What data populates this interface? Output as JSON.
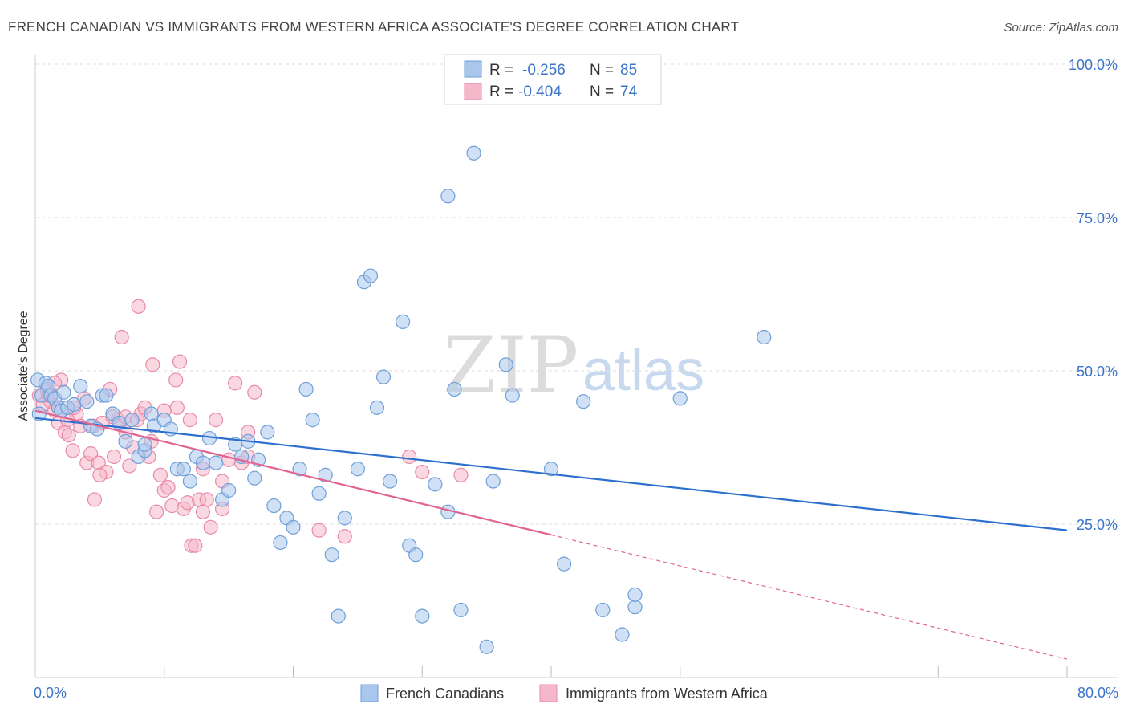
{
  "header": {
    "title": "FRENCH CANADIAN VS IMMIGRANTS FROM WESTERN AFRICA ASSOCIATE'S DEGREE CORRELATION CHART",
    "source": "Source: ZipAtlas.com"
  },
  "watermark": {
    "part1": "ZIP",
    "part2": "atlas"
  },
  "legend": {
    "rows": [
      {
        "r_label": "R =",
        "r_value": "-0.256",
        "n_label": "N =",
        "n_value": "85"
      },
      {
        "r_label": "R =",
        "r_value": "-0.404",
        "n_label": "N =",
        "n_value": "74"
      }
    ]
  },
  "bottom_legend": {
    "items": [
      {
        "label": "French Canadians"
      },
      {
        "label": "Immigrants from Western Africa"
      }
    ]
  },
  "colors": {
    "blue_fill": "#a9c6ec",
    "blue_stroke": "#6f9fd8",
    "blue_line": "#2d6fcf",
    "pink_fill": "#f5b8cb",
    "pink_stroke": "#e88aa8",
    "pink_line": "#e0648f",
    "grid": "#dddddd",
    "tick_label": "#3b73c8"
  },
  "chart_data": {
    "type": "scatter",
    "title": "FRENCH CANADIAN VS IMMIGRANTS FROM WESTERN AFRICA ASSOCIATE'S DEGREE CORRELATION CHART",
    "xlabel": "",
    "ylabel": "Associate's Degree",
    "xlim": [
      0,
      80
    ],
    "ylim": [
      0,
      100
    ],
    "x_tick_labels": [
      "0.0%",
      "80.0%"
    ],
    "y_ticks": [
      25,
      50,
      75,
      100
    ],
    "y_tick_labels": [
      "25.0%",
      "50.0%",
      "75.0%",
      "100.0%"
    ],
    "grid": true,
    "series": [
      {
        "name": "French Canadians",
        "r": -0.256,
        "n": 85,
        "trend": {
          "x0": 0,
          "y0": 42.3,
          "x1": 80,
          "y1": 24.0,
          "dashed_from": null
        },
        "points": [
          [
            0.2,
            48.5
          ],
          [
            0.3,
            43
          ],
          [
            0.5,
            46
          ],
          [
            0.8,
            48
          ],
          [
            1.0,
            47.5
          ],
          [
            1.2,
            46
          ],
          [
            1.5,
            45.5
          ],
          [
            1.8,
            44
          ],
          [
            2.0,
            43.5
          ],
          [
            2.2,
            46.5
          ],
          [
            2.5,
            44
          ],
          [
            3.0,
            44.5
          ],
          [
            3.5,
            47.5
          ],
          [
            4.0,
            45
          ],
          [
            4.3,
            41
          ],
          [
            4.8,
            40.5
          ],
          [
            5.2,
            46
          ],
          [
            5.5,
            46
          ],
          [
            6.0,
            43
          ],
          [
            6.5,
            41.5
          ],
          [
            7.0,
            38.5
          ],
          [
            7.5,
            42
          ],
          [
            8.0,
            36
          ],
          [
            8.5,
            37
          ],
          [
            9.0,
            43
          ],
          [
            9.2,
            41
          ],
          [
            10.0,
            42
          ],
          [
            10.5,
            40.5
          ],
          [
            11.0,
            34
          ],
          [
            11.5,
            34
          ],
          [
            12.0,
            32
          ],
          [
            12.5,
            36
          ],
          [
            13.0,
            35
          ],
          [
            13.5,
            39
          ],
          [
            14.0,
            35
          ],
          [
            14.5,
            29
          ],
          [
            15.0,
            30.5
          ],
          [
            15.5,
            38
          ],
          [
            16.0,
            36
          ],
          [
            16.5,
            38.5
          ],
          [
            17.0,
            32.5
          ],
          [
            17.3,
            35.5
          ],
          [
            18.0,
            40
          ],
          [
            18.5,
            28
          ],
          [
            19.0,
            22
          ],
          [
            19.5,
            26
          ],
          [
            20.0,
            24.5
          ],
          [
            20.5,
            34
          ],
          [
            21.0,
            47
          ],
          [
            21.5,
            42
          ],
          [
            22.0,
            30
          ],
          [
            22.5,
            33
          ],
          [
            23.0,
            20
          ],
          [
            23.5,
            10
          ],
          [
            24.0,
            26
          ],
          [
            25.0,
            34
          ],
          [
            25.5,
            64.5
          ],
          [
            26.0,
            65.5
          ],
          [
            26.5,
            44
          ],
          [
            27.0,
            49
          ],
          [
            27.5,
            32
          ],
          [
            28.5,
            58
          ],
          [
            29.0,
            21.5
          ],
          [
            29.5,
            20
          ],
          [
            30.0,
            10
          ],
          [
            31.0,
            31.5
          ],
          [
            32.0,
            27
          ],
          [
            32.5,
            47
          ],
          [
            33.0,
            11
          ],
          [
            34.0,
            85.5
          ],
          [
            35.0,
            5
          ],
          [
            35.5,
            32
          ],
          [
            36.5,
            51
          ],
          [
            37.0,
            46
          ],
          [
            40.0,
            34
          ],
          [
            41.0,
            18.5
          ],
          [
            42.5,
            45
          ],
          [
            44.0,
            11
          ],
          [
            45.5,
            7
          ],
          [
            46.5,
            11.5
          ],
          [
            46.5,
            13.5
          ],
          [
            50.0,
            45.5
          ],
          [
            56.5,
            55.5
          ],
          [
            32.0,
            78.5
          ],
          [
            8.5,
            38
          ]
        ]
      },
      {
        "name": "Immigrants from Western Africa",
        "r": -0.404,
        "n": 74,
        "trend": {
          "x0": 0,
          "y0": 43.5,
          "x1": 80,
          "y1": 3.0,
          "dashed_from": 40
        },
        "points": [
          [
            0.3,
            46
          ],
          [
            0.6,
            44.5
          ],
          [
            0.9,
            47
          ],
          [
            1.2,
            45
          ],
          [
            1.5,
            43.5
          ],
          [
            1.8,
            41.5
          ],
          [
            2.0,
            48.5
          ],
          [
            2.3,
            40
          ],
          [
            2.6,
            39.5
          ],
          [
            2.9,
            37
          ],
          [
            3.2,
            43
          ],
          [
            3.5,
            41
          ],
          [
            3.8,
            45.5
          ],
          [
            4.0,
            35
          ],
          [
            4.3,
            36.5
          ],
          [
            4.6,
            29
          ],
          [
            4.9,
            35
          ],
          [
            5.2,
            41.5
          ],
          [
            5.5,
            33.5
          ],
          [
            5.8,
            47
          ],
          [
            6.1,
            36
          ],
          [
            6.4,
            42
          ],
          [
            6.7,
            55.5
          ],
          [
            7.0,
            42.5
          ],
          [
            7.3,
            34.5
          ],
          [
            7.6,
            37.5
          ],
          [
            7.9,
            42
          ],
          [
            8.2,
            43
          ],
          [
            8.5,
            44
          ],
          [
            8.8,
            36
          ],
          [
            9.1,
            51
          ],
          [
            9.4,
            27
          ],
          [
            9.7,
            33
          ],
          [
            10.0,
            30.5
          ],
          [
            10.3,
            31
          ],
          [
            10.6,
            28
          ],
          [
            10.9,
            48.5
          ],
          [
            11.2,
            51.5
          ],
          [
            11.5,
            27.5
          ],
          [
            11.8,
            28.5
          ],
          [
            12.1,
            21.5
          ],
          [
            12.4,
            21.5
          ],
          [
            12.7,
            29
          ],
          [
            13.0,
            34
          ],
          [
            13.3,
            29
          ],
          [
            13.6,
            24.5
          ],
          [
            14.0,
            42
          ],
          [
            14.5,
            27.5
          ],
          [
            15.0,
            35.5
          ],
          [
            15.5,
            48
          ],
          [
            16.0,
            35
          ],
          [
            16.5,
            40
          ],
          [
            17.0,
            46.5
          ],
          [
            8.0,
            60.5
          ],
          [
            9.0,
            38.5
          ],
          [
            10.0,
            43.5
          ],
          [
            2.5,
            42
          ],
          [
            3.0,
            44
          ],
          [
            1.0,
            46
          ],
          [
            1.5,
            48
          ],
          [
            4.5,
            41
          ],
          [
            6.0,
            42.5
          ],
          [
            7.0,
            40
          ],
          [
            5.0,
            33
          ],
          [
            11.0,
            44
          ],
          [
            12.0,
            42
          ],
          [
            13.0,
            27
          ],
          [
            14.5,
            32
          ],
          [
            16.5,
            36
          ],
          [
            22.0,
            24
          ],
          [
            24.0,
            23
          ],
          [
            29.0,
            36
          ],
          [
            30.0,
            33.5
          ],
          [
            33.0,
            33
          ]
        ]
      }
    ]
  }
}
